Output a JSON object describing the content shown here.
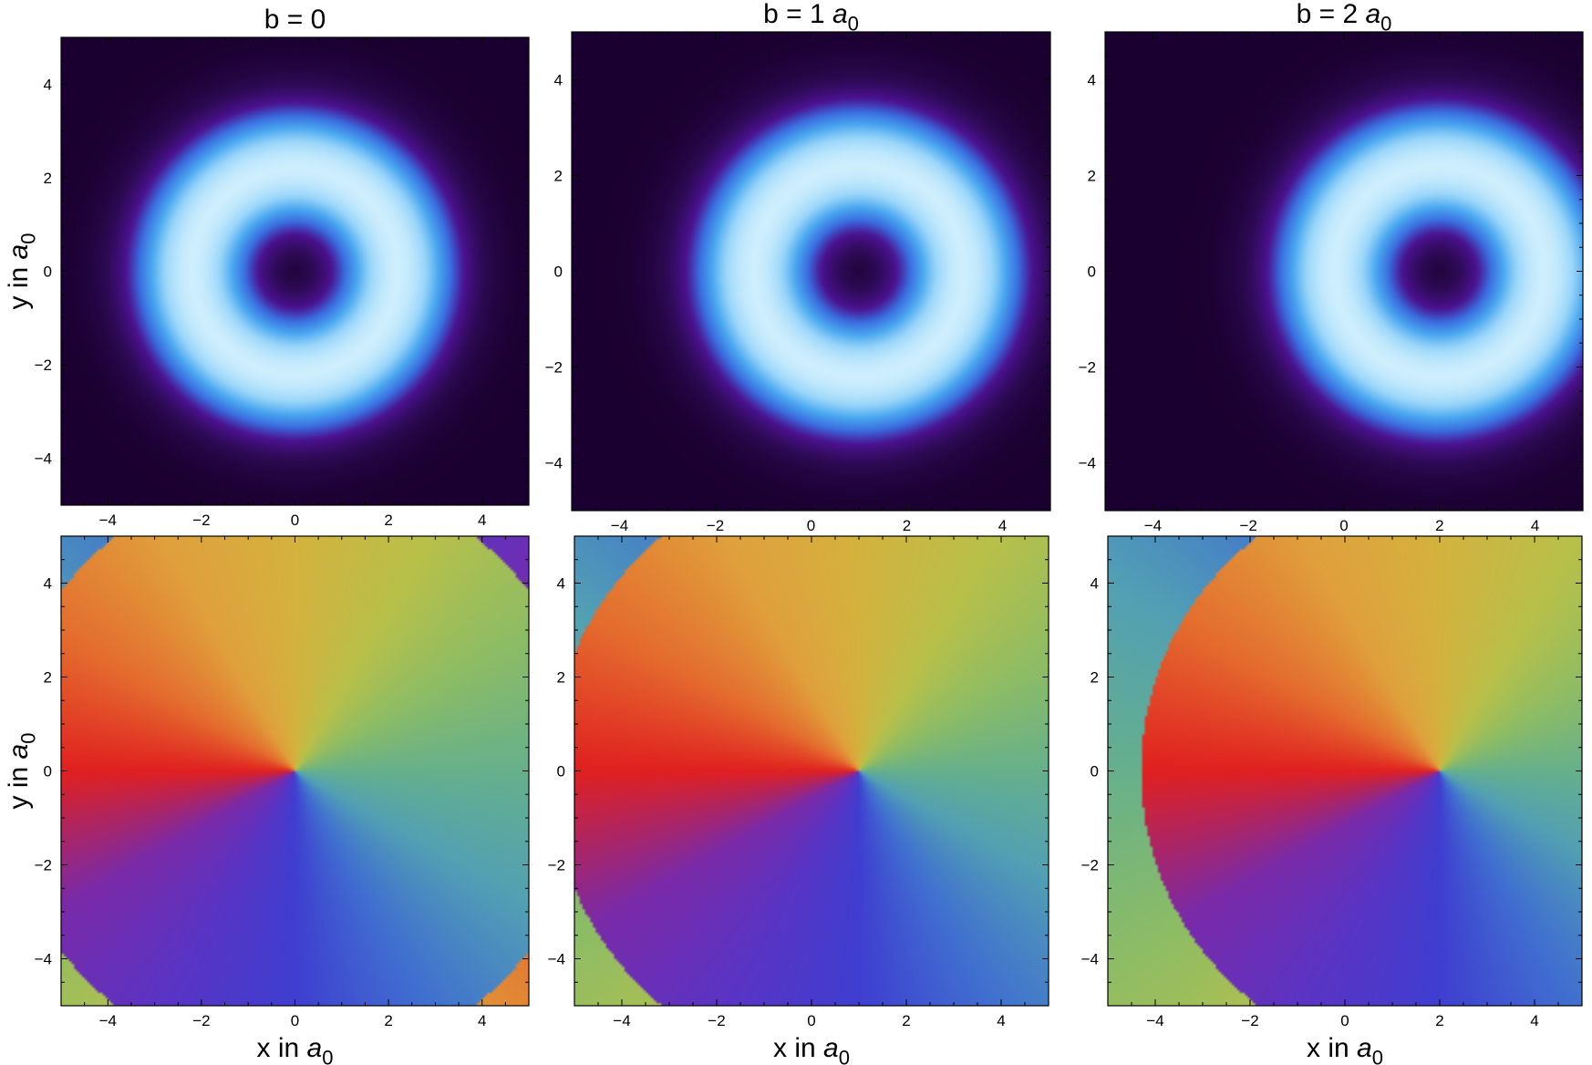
{
  "figure": {
    "row_ylabel": {
      "main": "y in ",
      "italic": "a",
      "sub": "0"
    },
    "col_xlabel": {
      "main": "x in ",
      "italic": "a",
      "sub": "0"
    }
  },
  "chart_data": [
    {
      "type": "heatmap",
      "quantity": "density",
      "title": {
        "main": "b = 0",
        "italic": "",
        "sub": ""
      },
      "b": 0,
      "xlim": [
        -5,
        5
      ],
      "ylim": [
        -5,
        5
      ],
      "xticks": [
        -4,
        -2,
        0,
        2,
        4
      ],
      "yticks": [
        -4,
        -2,
        0,
        2,
        4
      ],
      "tick_labels": [
        "−4",
        "−2",
        "0",
        "2",
        "4"
      ],
      "ring_radius": 2.2,
      "colormap": [
        "#1a0030",
        "#2e0a55",
        "#4b1290",
        "#3a6ee0",
        "#4aa8f0",
        "#9ad6fa",
        "#cdeefd"
      ],
      "show_xlabel": false,
      "show_ylabel": true
    },
    {
      "type": "heatmap",
      "quantity": "density",
      "title": {
        "main": "b = 1 ",
        "italic": "a",
        "sub": "0"
      },
      "b": 1,
      "xlim": [
        -5,
        5
      ],
      "ylim": [
        -5,
        5
      ],
      "xticks": [
        -4,
        -2,
        0,
        2,
        4
      ],
      "yticks": [
        -4,
        -2,
        0,
        2,
        4
      ],
      "tick_labels": [
        "−4",
        "−2",
        "0",
        "2",
        "4"
      ],
      "ring_radius": 2.2,
      "colormap": [
        "#1a0030",
        "#2e0a55",
        "#4b1290",
        "#3a6ee0",
        "#4aa8f0",
        "#9ad6fa",
        "#cdeefd"
      ],
      "show_xlabel": false,
      "show_ylabel": false
    },
    {
      "type": "heatmap",
      "quantity": "density",
      "title": {
        "main": "b = 2 ",
        "italic": "a",
        "sub": "0"
      },
      "b": 2,
      "xlim": [
        -5,
        5
      ],
      "ylim": [
        -5,
        5
      ],
      "xticks": [
        -4,
        -2,
        0,
        2,
        4
      ],
      "yticks": [
        -4,
        -2,
        0,
        2,
        4
      ],
      "tick_labels": [
        "−4",
        "−2",
        "0",
        "2",
        "4"
      ],
      "ring_radius": 2.2,
      "colormap": [
        "#1a0030",
        "#2e0a55",
        "#4b1290",
        "#3a6ee0",
        "#4aa8f0",
        "#9ad6fa",
        "#cdeefd"
      ],
      "show_xlabel": false,
      "show_ylabel": false
    },
    {
      "type": "heatmap",
      "quantity": "phase",
      "title": {
        "main": "",
        "italic": "",
        "sub": ""
      },
      "b": 0,
      "boundary_radius": 6.3,
      "xlim": [
        -5,
        5
      ],
      "ylim": [
        -5,
        5
      ],
      "xticks": [
        -4,
        -2,
        0,
        2,
        4
      ],
      "yticks": [
        -4,
        -2,
        0,
        2,
        4
      ],
      "tick_labels": [
        "−4",
        "−2",
        "0",
        "2",
        "4"
      ],
      "phase_colors": [
        "#e02020",
        "#e46c2e",
        "#e0a03c",
        "#d4b23e",
        "#b8c04a",
        "#8cbc66",
        "#66b08c",
        "#52a0b4",
        "#4070d0",
        "#3f3ed0",
        "#5a34c4",
        "#7a2aa8",
        "#e02020"
      ],
      "show_xlabel": true,
      "show_ylabel": true
    },
    {
      "type": "heatmap",
      "quantity": "phase",
      "title": {
        "main": "",
        "italic": "",
        "sub": ""
      },
      "b": 1,
      "boundary_radius": 6.5,
      "xlim": [
        -5,
        5
      ],
      "ylim": [
        -5,
        5
      ],
      "xticks": [
        -4,
        -2,
        0,
        2,
        4
      ],
      "yticks": [
        -4,
        -2,
        0,
        2,
        4
      ],
      "tick_labels": [
        "−4",
        "−2",
        "0",
        "2",
        "4"
      ],
      "phase_colors": [
        "#e02020",
        "#e46c2e",
        "#e0a03c",
        "#d4b23e",
        "#b8c04a",
        "#8cbc66",
        "#66b08c",
        "#52a0b4",
        "#4070d0",
        "#3f3ed0",
        "#5a34c4",
        "#7a2aa8",
        "#e02020"
      ],
      "show_xlabel": true,
      "show_ylabel": false
    },
    {
      "type": "heatmap",
      "quantity": "phase",
      "title": {
        "main": "",
        "italic": "",
        "sub": ""
      },
      "b": 2,
      "boundary_radius": 6.3,
      "xlim": [
        -5,
        5
      ],
      "ylim": [
        -5,
        5
      ],
      "xticks": [
        -4,
        -2,
        0,
        2,
        4
      ],
      "yticks": [
        -4,
        -2,
        0,
        2,
        4
      ],
      "tick_labels": [
        "−4",
        "−2",
        "0",
        "2",
        "4"
      ],
      "phase_colors": [
        "#e02020",
        "#e46c2e",
        "#e0a03c",
        "#d4b23e",
        "#b8c04a",
        "#8cbc66",
        "#66b08c",
        "#52a0b4",
        "#4070d0",
        "#3f3ed0",
        "#5a34c4",
        "#7a2aa8",
        "#e02020"
      ],
      "show_xlabel": true,
      "show_ylabel": false
    }
  ]
}
